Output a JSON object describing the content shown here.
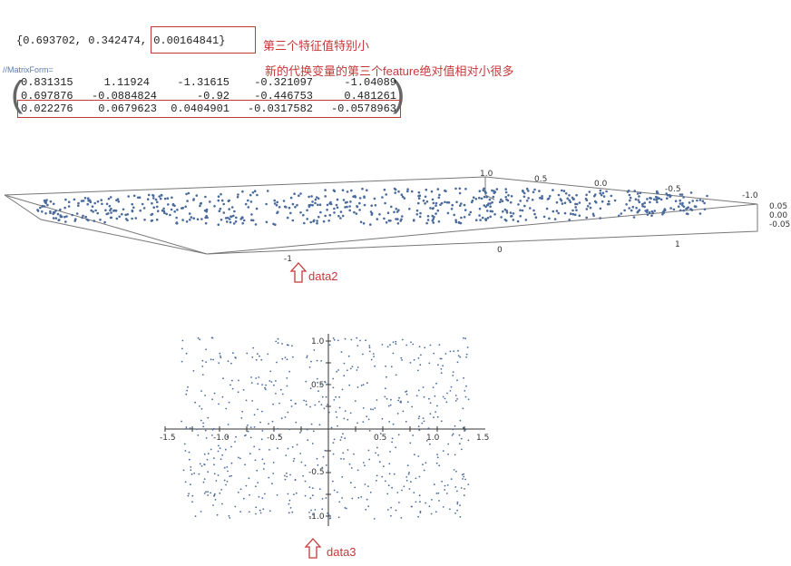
{
  "eigenvalues": {
    "prefix": "{0.693702, 0.342474, ",
    "highlighted": "0.00164841}"
  },
  "annotation1": "第三个特征值特别小",
  "annotation2": "新的代换变量的第三个feature绝对值相对小很多",
  "matrix_form_label": "//MatrixForm=",
  "matrix": [
    [
      "0.831315",
      "1.11924",
      "-1.31615",
      "-0.321097",
      "-1.04089"
    ],
    [
      "0.697876",
      "-0.0884824",
      "-0.92",
      "-0.446753",
      "0.481261"
    ],
    [
      "0.022276",
      "0.0679623",
      "0.0404901",
      "-0.0317582",
      "-0.0578963"
    ]
  ],
  "plot3d": {
    "back_ticks": [
      "1.0",
      "0.5",
      "0.0",
      "-0.5",
      "-1.0"
    ],
    "side_ticks": [
      "0.05",
      "0.00",
      "-0.05"
    ],
    "front_ticks": [
      "-1",
      "0",
      "1"
    ]
  },
  "plot2d": {
    "x_ticks": [
      "-1.5",
      "-1.0",
      "-0.5",
      "0.5",
      "1.0",
      "1.5"
    ],
    "y_ticks": [
      "1.0",
      "0.5",
      "-0.5",
      "-1.0"
    ],
    "point_color": "#4a6a9c"
  },
  "labels": {
    "data2": "data2",
    "data3": "data3"
  },
  "accent_color": "#c4393b"
}
